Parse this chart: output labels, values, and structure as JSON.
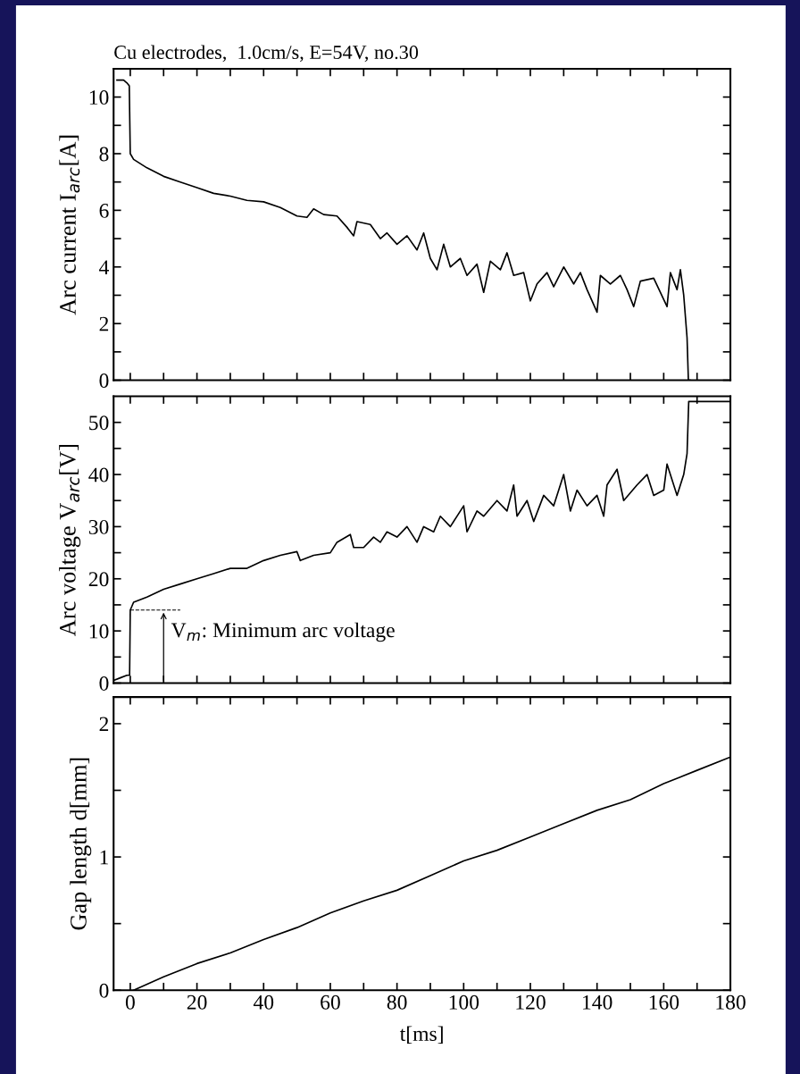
{
  "chart_data": [
    {
      "type": "line",
      "title": "Cu electrodes,  1.0cm/s, E=54V, no.30",
      "ylabel": "Arc current I$_{arc}$[A]",
      "tick_labels": "y",
      "xlim": [
        -5,
        180
      ],
      "xticks": [
        {
          "value": 0,
          "label": null
        },
        {
          "value": 10,
          "label": null
        },
        {
          "value": 20,
          "label": null
        },
        {
          "value": 30,
          "label": null
        },
        {
          "value": 40,
          "label": null
        },
        {
          "value": 50,
          "label": null
        },
        {
          "value": 60,
          "label": null
        },
        {
          "value": 70,
          "label": null
        },
        {
          "value": 80,
          "label": null
        },
        {
          "value": 90,
          "label": null
        },
        {
          "value": 100,
          "label": null
        },
        {
          "value": 110,
          "label": null
        },
        {
          "value": 120,
          "label": null
        },
        {
          "value": 130,
          "label": null
        },
        {
          "value": 140,
          "label": null
        },
        {
          "value": 150,
          "label": null
        },
        {
          "value": 160,
          "label": null
        },
        {
          "value": 170,
          "label": null
        },
        {
          "value": 180,
          "label": null
        }
      ],
      "ylim": [
        0,
        11
      ],
      "yticks": [
        0,
        {
          "value": 1,
          "label": null
        },
        2,
        {
          "value": 3,
          "label": null
        },
        4,
        {
          "value": 5,
          "label": null
        },
        6,
        {
          "value": 7,
          "label": null
        },
        8,
        {
          "value": 9,
          "label": null
        },
        10
      ],
      "series": [
        {
          "color": "#000000",
          "x": [
            -4,
            -2,
            -1,
            -0.3,
            0,
            1,
            5,
            10,
            15,
            20,
            25,
            30,
            35,
            40,
            45,
            50,
            53,
            55,
            58,
            62,
            65,
            67,
            68,
            72,
            75,
            77,
            80,
            83,
            86,
            88,
            90,
            92,
            94,
            96,
            99,
            101,
            104,
            106,
            108,
            111,
            113,
            115,
            118,
            120,
            122,
            125,
            127,
            130,
            133,
            135,
            137,
            140,
            141,
            144,
            147,
            149,
            151,
            153,
            157,
            161,
            162,
            164,
            165,
            166,
            167,
            167.4,
            168
          ],
          "values": [
            10.6,
            10.6,
            10.5,
            10.4,
            8.0,
            7.8,
            7.5,
            7.2,
            7.0,
            6.8,
            6.6,
            6.5,
            6.35,
            6.3,
            6.1,
            5.8,
            5.75,
            6.05,
            5.85,
            5.8,
            5.4,
            5.1,
            5.6,
            5.5,
            5.0,
            5.2,
            4.8,
            5.1,
            4.6,
            5.2,
            4.3,
            3.9,
            4.8,
            4.0,
            4.3,
            3.7,
            4.1,
            3.1,
            4.2,
            3.9,
            4.5,
            3.7,
            3.8,
            2.8,
            3.4,
            3.8,
            3.3,
            4.0,
            3.4,
            3.8,
            3.2,
            2.4,
            3.7,
            3.4,
            3.7,
            3.2,
            2.6,
            3.5,
            3.6,
            2.6,
            3.8,
            3.2,
            3.9,
            3.0,
            1.5,
            0,
            0
          ]
        }
      ]
    },
    {
      "type": "line",
      "ylabel": "Arc voltage V$_{arc}$[V]",
      "tick_labels": "y",
      "xlim": [
        -5,
        180
      ],
      "xticks": [
        {
          "value": 0,
          "label": null
        },
        {
          "value": 10,
          "label": null
        },
        {
          "value": 20,
          "label": null
        },
        {
          "value": 30,
          "label": null
        },
        {
          "value": 40,
          "label": null
        },
        {
          "value": 50,
          "label": null
        },
        {
          "value": 60,
          "label": null
        },
        {
          "value": 70,
          "label": null
        },
        {
          "value": 80,
          "label": null
        },
        {
          "value": 90,
          "label": null
        },
        {
          "value": 100,
          "label": null
        },
        {
          "value": 110,
          "label": null
        },
        {
          "value": 120,
          "label": null
        },
        {
          "value": 130,
          "label": null
        },
        {
          "value": 140,
          "label": null
        },
        {
          "value": 150,
          "label": null
        },
        {
          "value": 160,
          "label": null
        },
        {
          "value": 170,
          "label": null
        },
        {
          "value": 180,
          "label": null
        }
      ],
      "ylim": [
        0,
        55
      ],
      "yticks": [
        0,
        {
          "value": 5,
          "label": null
        },
        10,
        {
          "value": 15,
          "label": null
        },
        20,
        {
          "value": 25,
          "label": null
        },
        30,
        {
          "value": 35,
          "label": null
        },
        40,
        {
          "value": 45,
          "label": null
        },
        50
      ],
      "annotations": [
        {
          "text": "V$_{m}$: Minimum arc voltage",
          "x": 10,
          "y": 14
        }
      ],
      "series": [
        {
          "color": "#000000",
          "x": [
            -5,
            -3,
            -1,
            -0.2,
            0,
            1,
            5,
            10,
            15,
            20,
            25,
            30,
            35,
            40,
            45,
            50,
            51,
            55,
            60,
            62,
            66,
            67,
            70,
            73,
            75,
            77,
            80,
            83,
            86,
            88,
            91,
            93,
            96,
            100,
            101,
            104,
            106,
            110,
            113,
            115,
            116,
            119,
            121,
            124,
            127,
            130,
            132,
            134,
            137,
            140,
            142,
            143,
            146,
            148,
            152,
            155,
            157,
            160,
            161,
            164,
            165,
            166,
            167,
            167.5,
            180
          ],
          "values": [
            0.5,
            1,
            1.5,
            1.5,
            14,
            15.5,
            16.5,
            18,
            19,
            20,
            21,
            22,
            22,
            23.5,
            24.5,
            25.2,
            23.5,
            24.5,
            25,
            27,
            28.5,
            26,
            26,
            28,
            27,
            29,
            28,
            30,
            27,
            30,
            29,
            32,
            30,
            34,
            29,
            33,
            32,
            35,
            33,
            38,
            32,
            35,
            31,
            36,
            34,
            40,
            33,
            37,
            34,
            36,
            32,
            38,
            41,
            35,
            38,
            40,
            36,
            37,
            42,
            36,
            38,
            40,
            44,
            54,
            54
          ]
        },
        {
          "color": "#000000",
          "line_style": "dashed",
          "x": [
            0,
            15
          ],
          "values": [
            14,
            14
          ]
        }
      ]
    },
    {
      "type": "line",
      "ylabel": "Gap length d[mm]",
      "xlabel": "t[ms]",
      "xlim": [
        -5,
        180
      ],
      "xticks": [
        0,
        {
          "value": 10,
          "label": null
        },
        20,
        {
          "value": 30,
          "label": null
        },
        40,
        {
          "value": 50,
          "label": null
        },
        60,
        {
          "value": 70,
          "label": null
        },
        80,
        {
          "value": 90,
          "label": null
        },
        100,
        {
          "value": 110,
          "label": null
        },
        120,
        {
          "value": 130,
          "label": null
        },
        140,
        {
          "value": 150,
          "label": null
        },
        160,
        {
          "value": 170,
          "label": null
        },
        180
      ],
      "ylim": [
        0,
        2.2
      ],
      "yticks": [
        0,
        {
          "value": 0.5,
          "label": null
        },
        1,
        {
          "value": 1.5,
          "label": null
        },
        2
      ],
      "series": [
        {
          "color": "#000000",
          "x": [
            1,
            10,
            20,
            30,
            40,
            50,
            60,
            70,
            80,
            90,
            100,
            110,
            120,
            130,
            140,
            150,
            160,
            170,
            180
          ],
          "values": [
            0,
            0.1,
            0.2,
            0.28,
            0.38,
            0.47,
            0.58,
            0.67,
            0.75,
            0.86,
            0.97,
            1.05,
            1.15,
            1.25,
            1.35,
            1.43,
            1.55,
            1.65,
            1.75
          ]
        }
      ]
    }
  ]
}
